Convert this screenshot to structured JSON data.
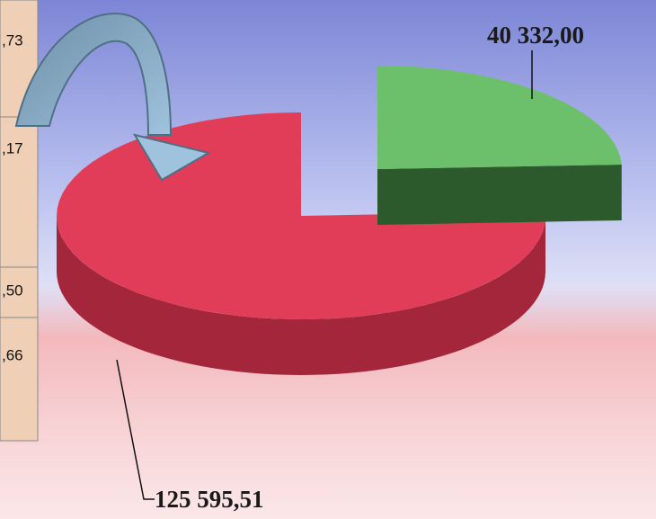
{
  "chart_data": {
    "type": "pie",
    "values": [
      125595.51,
      40332.0
    ],
    "value_labels": [
      "125 595,51",
      "40 332,00"
    ],
    "colors": [
      "#e23d58",
      "#6cc06c"
    ],
    "side_colors": [
      "#a3263a",
      "#2d5a2c"
    ]
  },
  "table_fragment": {
    "cells": [
      ",73",
      ",17",
      ",50",
      ",66"
    ]
  }
}
